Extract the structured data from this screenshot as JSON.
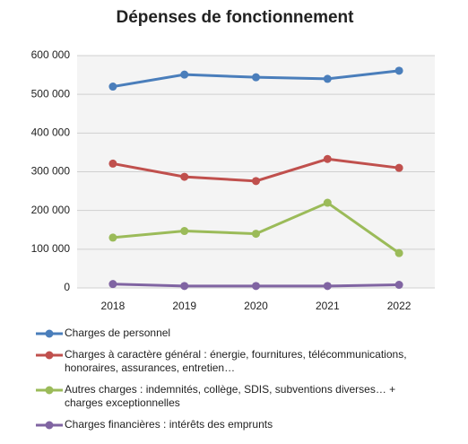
{
  "chart_data": {
    "type": "line",
    "title": "Dépenses de fonctionnement",
    "categories": [
      "2018",
      "2019",
      "2020",
      "2021",
      "2022"
    ],
    "series": [
      {
        "name": "Charges de personnel",
        "color": "#4a7ebb",
        "values": [
          520000,
          551000,
          544000,
          540000,
          561000
        ]
      },
      {
        "name": "Charges à caractère général : énergie, fournitures, télécommunications, honoraires, assurances, entretien…",
        "color": "#c0504d",
        "values": [
          321000,
          287000,
          276000,
          333000,
          310000
        ]
      },
      {
        "name": "Autres charges : indemnités, collège, SDIS, subventions diverses… + charges exceptionnelles",
        "color": "#9bbb59",
        "values": [
          130000,
          147000,
          140000,
          220000,
          90000
        ]
      },
      {
        "name": "Charges financières : intérêts des emprunts",
        "color": "#8064a2",
        "values": [
          10000,
          5000,
          5000,
          5000,
          8000
        ]
      }
    ],
    "ylim": [
      0,
      600000
    ],
    "yticks": [
      {
        "value": 0,
        "label": "0"
      },
      {
        "value": 100000,
        "label": "100 000"
      },
      {
        "value": 200000,
        "label": "200 000"
      },
      {
        "value": 300000,
        "label": "300 000"
      },
      {
        "value": 400000,
        "label": "400 000"
      },
      {
        "value": 500000,
        "label": "500 000"
      },
      {
        "value": 600000,
        "label": "600 000"
      }
    ],
    "grid": true,
    "legend": "bottom"
  }
}
